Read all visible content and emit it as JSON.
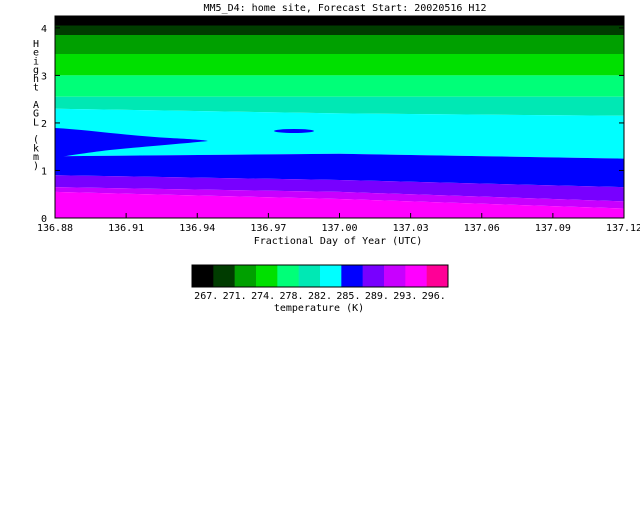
{
  "chart_data": {
    "type": "contour",
    "title": "MM5_D4: home site,  Forecast Start: 20020516 H12",
    "xlabel": "Fractional Day of Year (UTC)",
    "ylabel": "Height AGL (km)",
    "xlim": [
      136.88,
      137.12
    ],
    "ylim": [
      0,
      4.25
    ],
    "x_ticks": [
      "136.88",
      "136.91",
      "136.94",
      "136.97",
      "137.00",
      "137.03",
      "137.06",
      "137.09",
      "137.12"
    ],
    "y_ticks": [
      "0",
      "1",
      "2",
      "3",
      "4"
    ],
    "colorbar": {
      "label": "temperature (K)",
      "tick_labels": [
        "267.",
        "271.",
        "274.",
        "278.",
        "282.",
        "285.",
        "289.",
        "293.",
        "296."
      ],
      "colors": [
        "#000000",
        "#003c00",
        "#00a000",
        "#00e000",
        "#00ff78",
        "#00e8b4",
        "#00ffff",
        "#0000ff",
        "#7800ff",
        "#c800ff",
        "#ff00ff",
        "#ff0096"
      ]
    },
    "contour_bands_km": [
      {
        "color": "#000000",
        "lower": [
          4.05,
          4.05,
          4.05
        ],
        "upper": [
          4.25,
          4.25,
          4.25
        ]
      },
      {
        "color": "#003c00",
        "lower": [
          3.85,
          3.85,
          3.85
        ],
        "upper": [
          4.05,
          4.05,
          4.05
        ]
      },
      {
        "color": "#00a000",
        "lower": [
          3.45,
          3.45,
          3.45
        ],
        "upper": [
          3.85,
          3.85,
          3.85
        ]
      },
      {
        "color": "#00e000",
        "lower": [
          3.0,
          3.0,
          3.0
        ],
        "upper": [
          3.45,
          3.45,
          3.45
        ]
      },
      {
        "color": "#00ff78",
        "lower": [
          2.55,
          2.55,
          2.55
        ],
        "upper": [
          3.0,
          3.0,
          3.0
        ]
      },
      {
        "color": "#00e8b4",
        "lower": [
          2.3,
          2.2,
          2.15
        ],
        "upper": [
          2.55,
          2.55,
          2.55
        ]
      },
      {
        "color": "#00ffff",
        "lower": [
          1.3,
          1.35,
          1.25
        ],
        "upper": [
          2.3,
          2.2,
          2.15
        ]
      },
      {
        "color": "#0000ff",
        "lower": [
          0.9,
          0.8,
          0.65
        ],
        "upper": [
          1.3,
          1.35,
          1.25
        ]
      },
      {
        "color": "#7800ff",
        "lower": [
          0.65,
          0.55,
          0.35
        ],
        "upper": [
          0.9,
          0.8,
          0.65
        ]
      },
      {
        "color": "#c800ff",
        "lower": [
          0.55,
          0.4,
          0.2
        ],
        "upper": [
          0.65,
          0.55,
          0.35
        ]
      },
      {
        "color": "#ff00ff",
        "lower": [
          0.0,
          0.0,
          0.0
        ],
        "upper": [
          0.55,
          0.4,
          0.2
        ]
      }
    ],
    "contour_band_x": [
      136.88,
      137.0,
      137.12
    ]
  }
}
